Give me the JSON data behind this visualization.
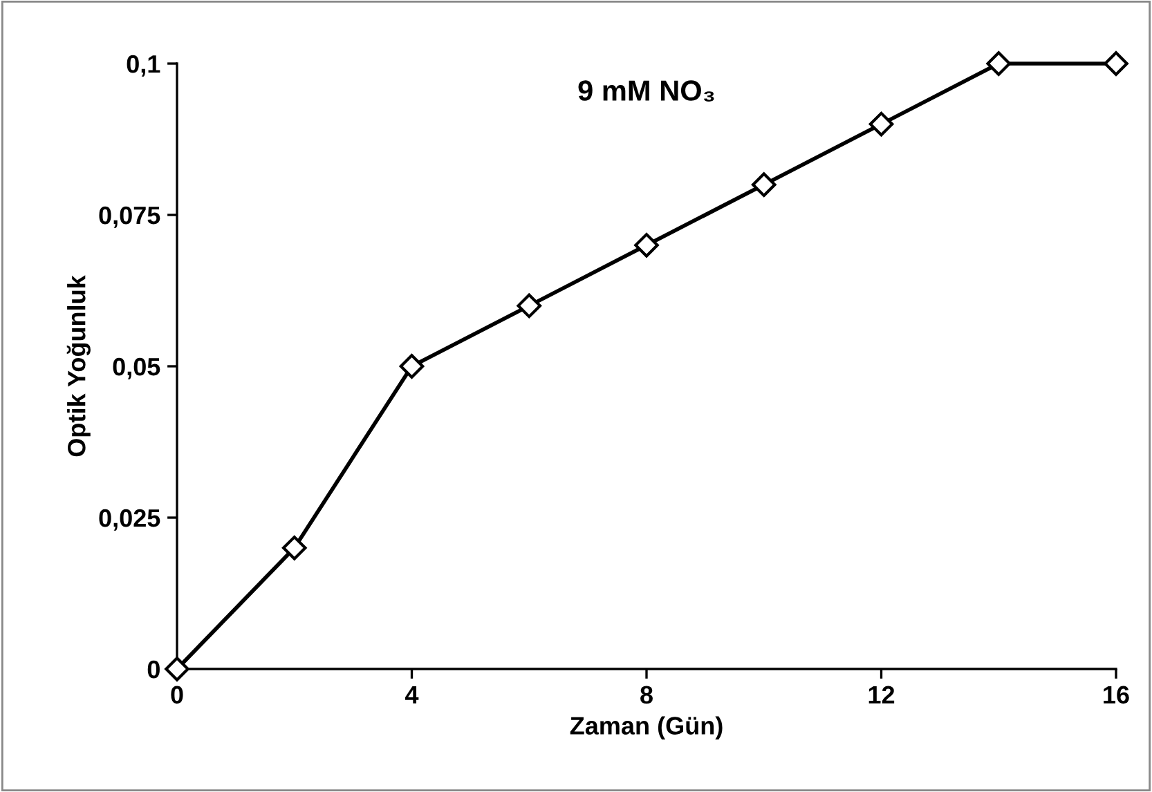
{
  "chart_data": {
    "type": "line",
    "title": "9 mM NO₃",
    "xlabel": "Zaman (Gün)",
    "ylabel": "Optik Yoğunluk",
    "x": [
      0,
      2,
      4,
      6,
      8,
      10,
      12,
      14,
      16
    ],
    "series": [
      {
        "color": "#000000",
        "values": [
          0,
          0.02,
          0.05,
          0.06,
          0.07,
          0.08,
          0.09,
          0.1,
          0.1
        ]
      }
    ],
    "xlim": [
      0,
      16
    ],
    "xticks": [
      0,
      4,
      8,
      12,
      16
    ],
    "ylim": [
      0,
      0.1
    ],
    "yticks": [
      {
        "value": 0,
        "label": "0"
      },
      {
        "value": 0.025,
        "label": "0,025"
      },
      {
        "value": 0.05,
        "label": "0,05"
      },
      {
        "value": 0.075,
        "label": "0,075"
      },
      {
        "value": 0.1,
        "label": "0,1"
      }
    ],
    "marker": "diamond",
    "line_style": "solid",
    "grid": false,
    "legend": false
  }
}
